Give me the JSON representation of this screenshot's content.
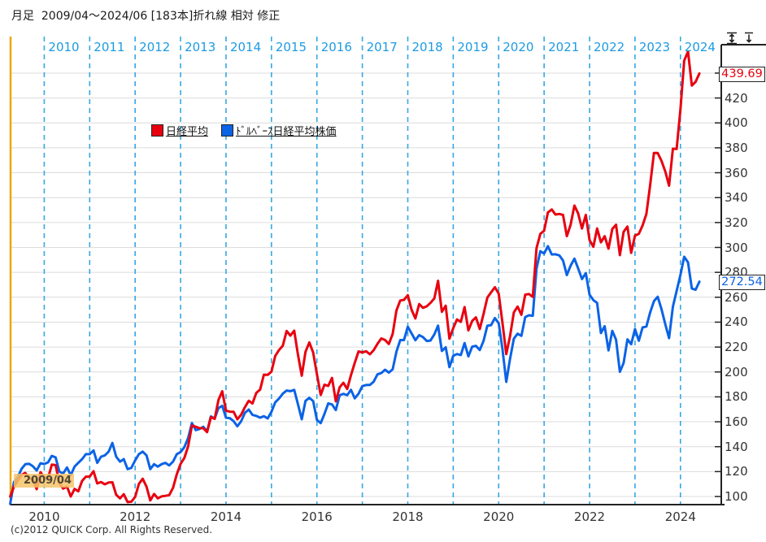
{
  "title": {
    "text": "月足  2009/04～2024/06 [183本]折れ線 相対 修正"
  },
  "toolbar": {
    "expand_scale_icon": "vertical-expand",
    "compress_scale_icon": "vertical-compress"
  },
  "legend": {
    "items": [
      {
        "label": "日経平均",
        "color": "#e8000f"
      },
      {
        "label": "ﾄﾞﾙﾍﾞｰｽ日経平均株価",
        "color": "#0b63e6"
      }
    ]
  },
  "annotations": {
    "start_label": "2009/04",
    "red_value_box": "439.69",
    "blue_value_box": "272.54"
  },
  "footer": {
    "copyright": "(c)2012 QUICK Corp. All Rights Reserved."
  },
  "colors": {
    "red_line": "#e8000f",
    "blue_line": "#0b63e6",
    "year_gridline": "#35a7e4",
    "year_label": "#1d9be0",
    "h_gridline": "#dcdcdc",
    "left_boundary": "#eda70c",
    "axis": "#222222",
    "badge_bg": "#f6c46a"
  },
  "chart_data": {
    "type": "line",
    "title": "月足  2009/04～2024/06 [183本]折れ線 相対 修正",
    "interval": "monthly",
    "x_start": "2009/04",
    "x_end": "2024/06",
    "point_count": 183,
    "grid": true,
    "legend_position": "top-left-inside",
    "x_axis": {
      "year_lines": [
        2010,
        2011,
        2012,
        2013,
        2014,
        2015,
        2016,
        2017,
        2018,
        2019,
        2020,
        2021,
        2022,
        2023,
        2024
      ],
      "bottom_labels": [
        2010,
        2012,
        2014,
        2016,
        2018,
        2020,
        2022,
        2024
      ]
    },
    "y_axis": {
      "tick_labels": [
        100,
        120,
        140,
        160,
        180,
        200,
        220,
        240,
        260,
        280,
        300,
        320,
        340,
        360,
        380,
        400,
        420
      ],
      "gridlines": [
        100,
        120,
        140,
        160,
        180,
        200,
        220,
        240,
        260,
        280,
        300,
        320,
        340,
        360,
        380,
        400,
        420,
        440
      ],
      "visible_range": [
        93,
        468
      ]
    },
    "series": [
      {
        "name": "日経平均",
        "color": "#e8000f",
        "last_value": 439.69,
        "values": [
          100,
          107.9,
          112.8,
          117.3,
          118.9,
          114.8,
          113.7,
          105.9,
          119.5,
          115.5,
          114.7,
          125.6,
          125.2,
          110.7,
          106.3,
          108,
          100,
          106.1,
          104.2,
          112.6,
          115.9,
          116,
          120.3,
          110.5,
          111.6,
          109.8,
          111.2,
          111.4,
          101.4,
          98.5,
          101.8,
          95.5,
          95.8,
          99.7,
          110.1,
          114.2,
          107.8,
          96.8,
          102,
          98.5,
          100.1,
          100.5,
          101.1,
          107,
          117.8,
          126.2,
          130.9,
          140.4,
          157,
          156,
          154.9,
          154.8,
          151.7,
          163.7,
          162.3,
          177.4,
          184.5,
          168.9,
          168.1,
          168,
          162,
          165.7,
          171.7,
          176.9,
          174.7,
          183.2,
          185.9,
          197.8,
          197.7,
          200.2,
          212.9,
          217.6,
          221.1,
          232.9,
          229.2,
          233.2,
          214,
          197,
          216.2,
          223.7,
          215.6,
          198.4,
          181.5,
          189.8,
          188.8,
          195.2,
          176.4,
          187.7,
          191.3,
          186.3,
          197.4,
          207.4,
          216.5,
          215.7,
          216.6,
          214.2,
          217.5,
          222.6,
          226.9,
          225.7,
          222.5,
          230.6,
          249.3,
          257.4,
          257.9,
          261.6,
          250,
          243,
          254.5,
          251.5,
          252.7,
          255.5,
          259,
          273.2,
          248.3,
          253.2,
          226.7,
          235.3,
          242.2,
          240.2,
          252.1,
          233.4,
          241,
          243.8,
          234.5,
          246.4,
          259.7,
          263.9,
          268,
          262.9,
          239.5,
          214.3,
          228.7,
          247.8,
          252.5,
          245.9,
          262.1,
          262.6,
          260.3,
          299.4,
          310.9,
          313.4,
          328.1,
          330.5,
          326.4,
          326.9,
          326.1,
          309.1,
          318.2,
          333.6,
          327.3,
          315.2,
          326.1,
          305.9,
          300.5,
          315.2,
          304.1,
          309,
          299,
          314.9,
          318.2,
          293.8,
          312.5,
          316.8,
          295.6,
          309.5,
          310.9,
          317.6,
          326.9,
          349.9,
          375.9,
          375.8,
          369.5,
          360.9,
          349.6,
          379.3,
          379.1,
          411,
          450,
          457.3,
          430,
          433,
          439.69
        ]
      },
      {
        "name": "ﾄﾞﾙﾍﾞｰｽ日経平均株価",
        "color": "#0b63e6",
        "last_value": 272.54,
        "values": [
          94,
          111.6,
          115.4,
          122.2,
          125.9,
          126.2,
          124.3,
          120.9,
          126.7,
          126.1,
          127.4,
          132.6,
          131.4,
          120,
          118.5,
          123.3,
          117.1,
          124,
          127,
          130,
          134,
          134,
          137,
          127,
          132,
          133,
          136,
          143,
          132,
          128,
          130,
          122,
          123,
          129,
          134,
          136,
          133,
          122,
          126,
          124,
          126,
          127,
          125,
          128,
          134,
          135.7,
          139.6,
          147,
          159,
          153.3,
          154.2,
          156,
          152.3,
          164.3,
          162.6,
          170.9,
          172.8,
          163.3,
          162.9,
          160.5,
          156.4,
          160.5,
          167.2,
          169.8,
          165.5,
          164.7,
          163.3,
          164.5,
          162.7,
          168,
          175.6,
          178.7,
          182.6,
          185.1,
          184.6,
          185.6,
          174.1,
          162,
          176.8,
          179.2,
          176.7,
          161.6,
          158.9,
          166.3,
          174.8,
          173.9,
          169.4,
          181.3,
          182.4,
          181.4,
          185.7,
          178.8,
          182.5,
          188.6,
          189.5,
          189.6,
          192.3,
          198.1,
          199.1,
          201.8,
          199.5,
          202.1,
          216.3,
          225.6,
          225.6,
          236.3,
          231,
          225.5,
          229.6,
          228,
          224.9,
          225.2,
          230.1,
          237.2,
          216.9,
          219.8,
          203.8,
          213.1,
          214.4,
          213.6,
          223.2,
          212.5,
          220.3,
          221,
          217.6,
          224.8,
          237.1,
          237.6,
          243.3,
          239.1,
          218.5,
          192,
          210.4,
          226.7,
          230.7,
          229,
          244.1,
          245.5,
          245.1,
          283.1,
          297,
          295.1,
          301,
          294.4,
          294.5,
          293.6,
          289.5,
          277.8,
          285.3,
          291,
          283.1,
          274.6,
          279.4,
          262.1,
          257.7,
          255.4,
          231.2,
          236.8,
          217.3,
          233,
          225.9,
          200.1,
          207.2,
          226.2,
          222.3,
          234.4,
          225.1,
          235.7,
          236.5,
          247.7,
          256.9,
          260.4,
          250.4,
          238.2,
          227.2,
          252.4,
          265.1,
          278,
          292.5,
          288,
          267,
          266,
          272.54
        ]
      }
    ]
  }
}
